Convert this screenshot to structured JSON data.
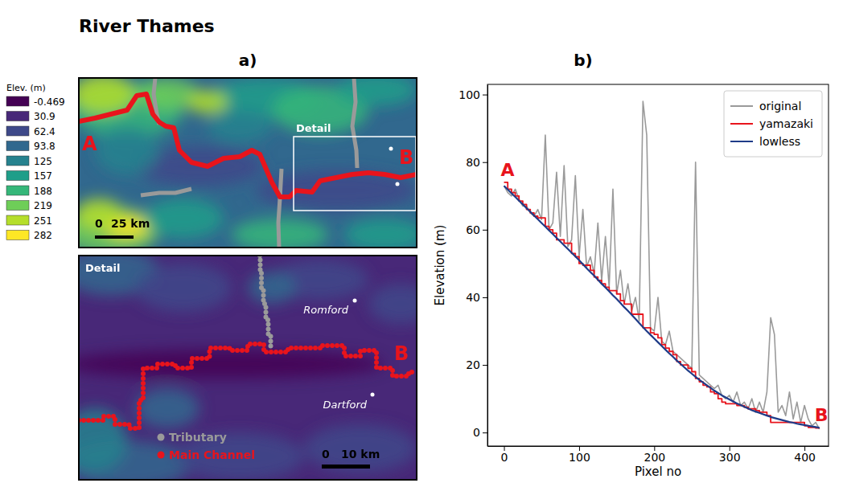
{
  "title": "River Thames",
  "map": {
    "label": "a)",
    "colorbar": {
      "title": "Elev. (m)",
      "values": [
        -0.469,
        30.9,
        62.4,
        93.8,
        125,
        157,
        188,
        219,
        251,
        282
      ],
      "colors": [
        "#440154",
        "#482878",
        "#3e4989",
        "#31688e",
        "#26828e",
        "#1f9e89",
        "#35b779",
        "#6ece58",
        "#b5de2b",
        "#fde725"
      ]
    },
    "overview": {
      "start_label": "A",
      "end_label": "B",
      "inset_label": "Detail",
      "scale_bar": [
        "0",
        "25 km"
      ]
    },
    "detail": {
      "title": "Detail",
      "end_label": "B",
      "places": [
        "Romford",
        "Dartford"
      ],
      "legend": [
        {
          "name": "Tributary",
          "color": "#9a9a9a"
        },
        {
          "name": "Main Channel",
          "color": "#e8141c"
        }
      ],
      "scale_bar": [
        "0",
        "10 km"
      ]
    }
  },
  "chart_data": {
    "type": "line",
    "title": "b)",
    "x_label": "Pixel no",
    "y_label": "Elevation (m)",
    "x": [
      0,
      5,
      10,
      15,
      20,
      25,
      30,
      35,
      40,
      45,
      50,
      55,
      60,
      65,
      70,
      75,
      80,
      85,
      90,
      95,
      100,
      105,
      110,
      115,
      120,
      125,
      130,
      135,
      140,
      145,
      150,
      155,
      160,
      165,
      170,
      175,
      180,
      185,
      190,
      195,
      200,
      205,
      210,
      215,
      220,
      225,
      230,
      235,
      240,
      245,
      250,
      255,
      260,
      265,
      270,
      275,
      280,
      285,
      290,
      295,
      300,
      305,
      310,
      315,
      320,
      325,
      330,
      335,
      340,
      345,
      350,
      355,
      360,
      365,
      370,
      375,
      380,
      385,
      390,
      395,
      400,
      405,
      410,
      415,
      420
    ],
    "xlim": [
      -22,
      432
    ],
    "ylim": [
      -4,
      103
    ],
    "xticks": [
      0,
      100,
      200,
      300,
      400
    ],
    "yticks": [
      0,
      20,
      40,
      60,
      80,
      100
    ],
    "legend": "upper right",
    "series": [
      {
        "name": "original",
        "color": "#9a9a9a",
        "values": [
          73,
          71,
          70,
          72,
          69,
          67,
          67,
          65,
          64,
          66,
          63,
          88,
          60,
          62,
          77,
          58,
          79,
          55,
          57,
          76,
          52,
          66,
          49,
          52,
          47,
          62,
          45,
          58,
          43,
          72,
          41,
          48,
          38,
          44,
          36,
          40,
          33,
          98,
          88,
          31,
          30,
          40,
          27,
          26,
          30,
          24,
          23,
          22,
          21,
          20,
          19,
          80,
          17,
          16,
          15,
          14,
          13,
          14,
          11,
          10,
          11,
          9,
          12,
          8,
          9,
          7,
          10,
          6,
          9,
          6,
          12,
          34,
          29,
          6,
          8,
          5,
          12,
          4,
          9,
          3,
          8,
          4,
          2,
          3,
          1
        ]
      },
      {
        "name": "yamazaki",
        "color": "#e8141c",
        "line_style": "steps",
        "values": [
          74,
          72,
          71,
          70,
          68.5,
          67.5,
          66,
          65,
          64,
          63.5,
          63.5,
          61,
          60,
          59,
          57,
          57,
          56,
          56,
          53,
          52,
          50,
          49.5,
          49.5,
          48,
          46,
          45,
          44,
          43,
          42,
          42,
          41,
          39,
          38,
          38,
          35,
          35,
          35,
          31,
          31,
          29.5,
          29,
          28,
          26,
          25,
          24,
          23,
          21,
          20,
          20,
          19,
          18,
          16,
          15,
          14,
          13.5,
          12,
          11.5,
          10,
          9,
          8.5,
          8.5,
          8.5,
          8,
          8,
          7.5,
          7,
          7,
          6.5,
          6,
          6,
          5,
          3,
          3,
          3,
          3,
          3,
          3,
          3,
          3,
          3,
          2,
          1.5,
          1.5,
          1.3,
          1.3
        ]
      },
      {
        "name": "lowless",
        "color": "#1f3c88",
        "values": [
          73,
          71.9,
          70.8,
          69.7,
          68.6,
          67.5,
          66.4,
          65.3,
          64.2,
          63.1,
          62,
          60.9,
          59.8,
          58.7,
          57.6,
          56.5,
          55.4,
          54.3,
          53.2,
          52.1,
          51,
          49.8,
          48.6,
          47.5,
          46.4,
          45.2,
          44,
          42.9,
          41.8,
          40.6,
          39.5,
          38.3,
          37.1,
          36,
          34.8,
          33.6,
          32.4,
          31.2,
          30,
          28.9,
          27.8,
          26.7,
          25.6,
          24.5,
          23.4,
          22.4,
          21.3,
          20.3,
          19.3,
          18.3,
          17.4,
          16.5,
          15.6,
          14.8,
          14,
          13.2,
          12.4,
          11.7,
          11,
          10.4,
          9.8,
          9.2,
          8.6,
          8.1,
          7.6,
          7.1,
          6.6,
          6.2,
          5.8,
          5.4,
          5,
          4.6,
          4.3,
          4,
          3.7,
          3.4,
          3.1,
          2.9,
          2.6,
          2.4,
          2.2,
          2,
          1.8,
          1.6,
          1.4
        ]
      }
    ],
    "annotations": [
      {
        "text": "A",
        "color": "#e8141c"
      },
      {
        "text": "B",
        "color": "#e8141c"
      }
    ]
  }
}
